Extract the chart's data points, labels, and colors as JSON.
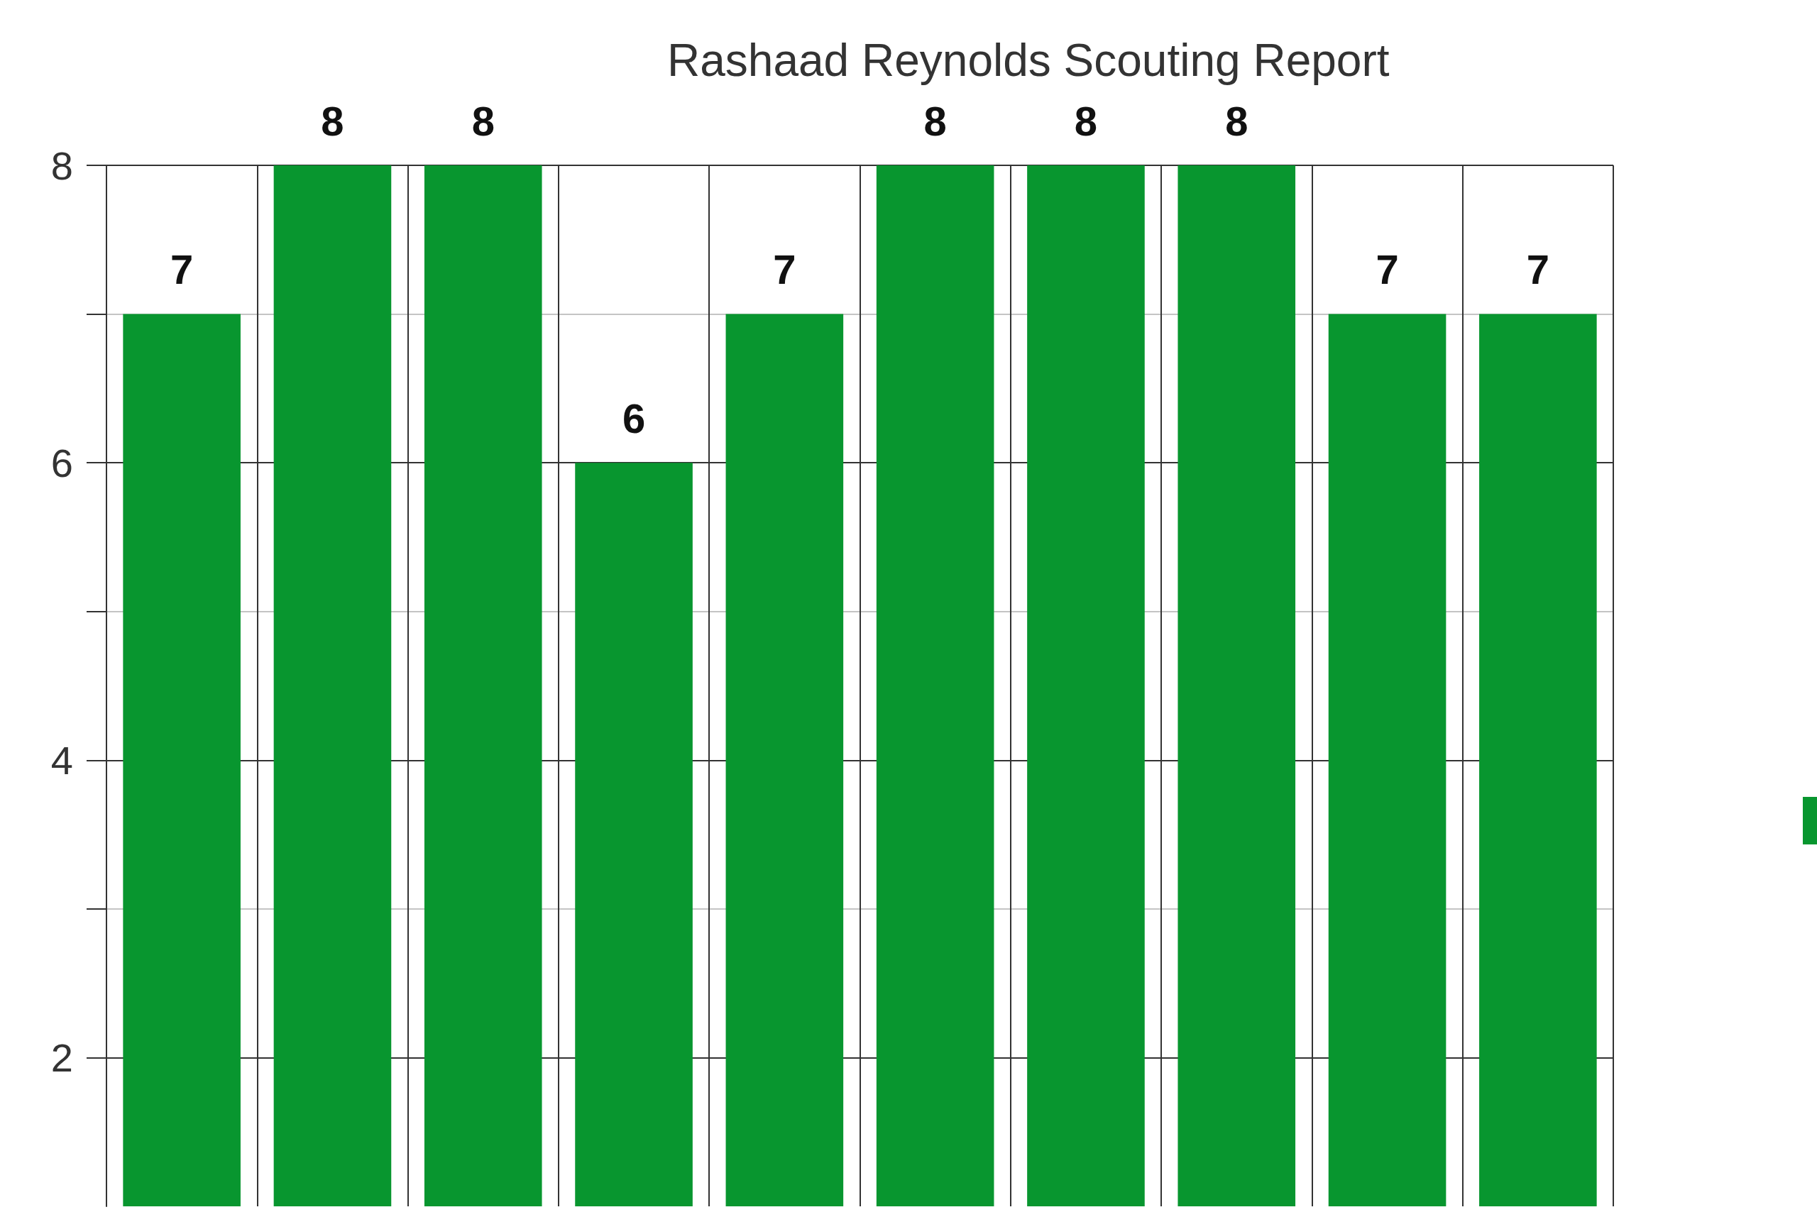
{
  "chart_data": {
    "type": "bar",
    "title": "Rashaad Reynolds Scouting Report",
    "categories": [
      null,
      null,
      null,
      null,
      null,
      null,
      null,
      null,
      null,
      null
    ],
    "values": [
      7,
      8,
      8,
      6,
      7,
      8,
      8,
      8,
      7,
      7
    ],
    "color": "#08962f",
    "ylim": [
      1,
      8
    ],
    "yticks": [
      2,
      {
        "value": 3,
        "label": null
      },
      4,
      {
        "value": 5,
        "label": null
      },
      6,
      {
        "value": 7,
        "label": null
      },
      8
    ],
    "grid": true,
    "data_labels": true
  }
}
